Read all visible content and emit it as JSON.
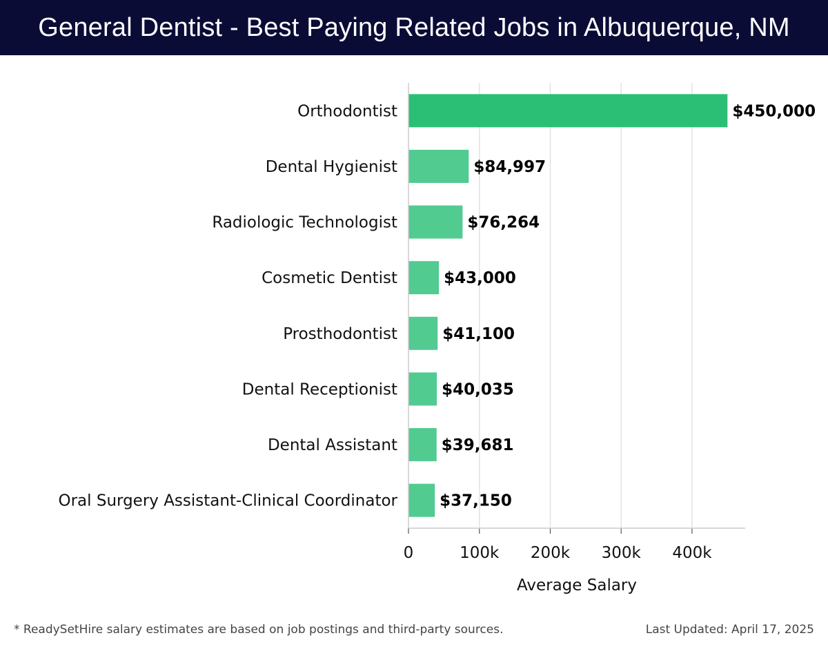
{
  "header": {
    "title": "General Dentist - Best Paying Related Jobs in Albuquerque, NM"
  },
  "footer": {
    "note": "* ReadySetHire salary estimates are based on job postings and third-party sources.",
    "updated": "Last Updated: April 17, 2025"
  },
  "colors": {
    "header_bg": "#0b0c36",
    "top_bar": "#2bbf76",
    "bar": "#52cb91",
    "grid": "#e3e3e3"
  },
  "chart_data": {
    "type": "bar",
    "orientation": "horizontal",
    "categories": [
      "Orthodontist",
      "Dental Hygienist",
      "Radiologic Technologist",
      "Cosmetic Dentist",
      "Prosthodontist",
      "Dental Receptionist",
      "Dental Assistant",
      "Oral Surgery Assistant-Clinical Coordinator"
    ],
    "values": [
      450000,
      84997,
      76264,
      43000,
      41100,
      40035,
      39681,
      37150
    ],
    "value_labels": [
      "$450,000",
      "$84,997",
      "$76,264",
      "$43,000",
      "$41,100",
      "$40,035",
      "$39,681",
      "$37,150"
    ],
    "xlabel": "Average Salary",
    "xlim": [
      0,
      475000
    ],
    "xticks": [
      0,
      100000,
      200000,
      300000,
      400000
    ],
    "xtick_labels": [
      "0",
      "100k",
      "200k",
      "300k",
      "400k"
    ],
    "grid": true
  }
}
